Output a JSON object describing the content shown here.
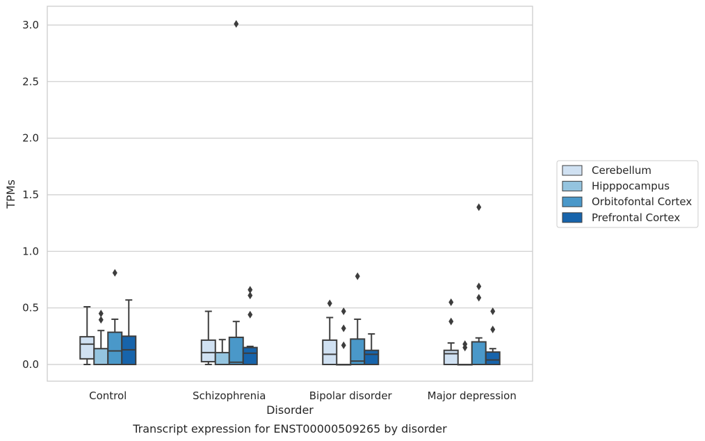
{
  "chart_data": {
    "type": "box",
    "title": "",
    "caption": "Transcript expression for ENST00000509265 by disorder",
    "xlabel": "Disorder",
    "ylabel": "TPMs",
    "ylim": [
      -0.15,
      3.17
    ],
    "yticks": [
      0.0,
      0.5,
      1.0,
      1.5,
      2.0,
      2.5,
      3.0
    ],
    "ytick_labels": [
      "0.0",
      "0.5",
      "1.0",
      "1.5",
      "2.0",
      "2.5",
      "3.0"
    ],
    "grid": "horizontal",
    "legend_position": "right",
    "categories": [
      "Control",
      "Schizophrenia",
      "Bipolar disorder",
      "Major depression"
    ],
    "series": [
      {
        "name": "Cerebellum",
        "color": "#d0e1f2",
        "boxes": [
          {
            "whisker_low": 0.0,
            "q1": 0.05,
            "median": 0.18,
            "q3": 0.245,
            "whisker_high": 0.51,
            "outliers": []
          },
          {
            "whisker_low": 0.0,
            "q1": 0.025,
            "median": 0.105,
            "q3": 0.215,
            "whisker_high": 0.47,
            "outliers": []
          },
          {
            "whisker_low": 0.0,
            "q1": 0.0,
            "median": 0.09,
            "q3": 0.215,
            "whisker_high": 0.415,
            "outliers": [
              0.54
            ]
          },
          {
            "whisker_low": 0.0,
            "q1": 0.0,
            "median": 0.095,
            "q3": 0.125,
            "whisker_high": 0.19,
            "outliers": [
              0.38,
              0.55
            ]
          }
        ]
      },
      {
        "name": "Hipppocampus",
        "color": "#94c4df",
        "boxes": [
          {
            "whisker_low": 0.0,
            "q1": 0.0,
            "median": 0.0,
            "q3": 0.14,
            "whisker_high": 0.3,
            "outliers": [
              0.395,
              0.45
            ]
          },
          {
            "whisker_low": 0.0,
            "q1": 0.0,
            "median": 0.0,
            "q3": 0.105,
            "whisker_high": 0.22,
            "outliers": []
          },
          {
            "whisker_low": 0.0,
            "q1": 0.0,
            "median": 0.0,
            "q3": 0.0,
            "whisker_high": 0.0,
            "outliers": [
              0.17,
              0.32,
              0.47
            ]
          },
          {
            "whisker_low": 0.0,
            "q1": 0.0,
            "median": 0.0,
            "q3": 0.0,
            "whisker_high": 0.0,
            "outliers": [
              0.15,
              0.18
            ]
          }
        ]
      },
      {
        "name": "Orbitofontal Cortex",
        "color": "#4a98c9",
        "boxes": [
          {
            "whisker_low": 0.0,
            "q1": 0.0,
            "median": 0.12,
            "q3": 0.285,
            "whisker_high": 0.4,
            "outliers": [
              0.81
            ]
          },
          {
            "whisker_low": 0.0,
            "q1": 0.0,
            "median": 0.02,
            "q3": 0.24,
            "whisker_high": 0.38,
            "outliers": [
              3.01
            ]
          },
          {
            "whisker_low": 0.0,
            "q1": 0.0,
            "median": 0.03,
            "q3": 0.225,
            "whisker_high": 0.4,
            "outliers": [
              0.78
            ]
          },
          {
            "whisker_low": 0.0,
            "q1": 0.0,
            "median": 0.0,
            "q3": 0.2,
            "whisker_high": 0.235,
            "outliers": [
              0.59,
              0.69,
              1.39
            ]
          }
        ]
      },
      {
        "name": "Prefrontal Cortex",
        "color": "#1764ab",
        "boxes": [
          {
            "whisker_low": 0.0,
            "q1": 0.0,
            "median": 0.13,
            "q3": 0.25,
            "whisker_high": 0.57,
            "outliers": []
          },
          {
            "whisker_low": 0.0,
            "q1": 0.0,
            "median": 0.1,
            "q3": 0.15,
            "whisker_high": 0.16,
            "outliers": [
              0.44,
              0.61,
              0.66
            ]
          },
          {
            "whisker_low": 0.0,
            "q1": 0.0,
            "median": 0.09,
            "q3": 0.125,
            "whisker_high": 0.27,
            "outliers": []
          },
          {
            "whisker_low": 0.0,
            "q1": 0.0,
            "median": 0.04,
            "q3": 0.11,
            "whisker_high": 0.14,
            "outliers": [
              0.31,
              0.47
            ]
          }
        ]
      }
    ]
  }
}
